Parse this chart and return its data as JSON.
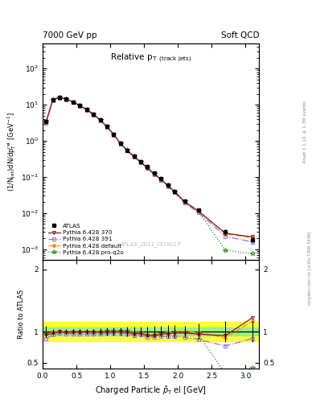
{
  "title_left": "7000 GeV pp",
  "title_right": "Soft QCD",
  "plot_title": "Relative p$_\\mathrm{T}$ $_{\\mathrm{(track\\ jets)}}$",
  "xlabel": "Charged Particle $\\tilde{p}_\\mathrm{T}$ el [GeV]",
  "ylabel_main": "(1/N$_\\mathrm{jet}$)dN/dp$_\\mathrm{T}^\\mathrm{rel}$ [GeV$^{-1}$]",
  "ylabel_ratio": "Ratio to ATLAS",
  "right_label": "Rivet 3.1.10, ≥ 1.7M events",
  "right_label2": "mcplots.cern.ch [arXiv:1306.3436]",
  "watermark": "ATLAS_2011_I919017",
  "x_atlas": [
    0.05,
    0.15,
    0.25,
    0.35,
    0.45,
    0.55,
    0.65,
    0.75,
    0.85,
    0.95,
    1.05,
    1.15,
    1.25,
    1.35,
    1.45,
    1.55,
    1.65,
    1.75,
    1.85,
    1.95,
    2.1,
    2.3,
    2.7,
    3.1
  ],
  "y_atlas": [
    3.5,
    14.0,
    16.0,
    14.5,
    12.0,
    9.5,
    7.5,
    5.5,
    3.8,
    2.5,
    1.5,
    0.85,
    0.55,
    0.38,
    0.27,
    0.19,
    0.13,
    0.09,
    0.06,
    0.04,
    0.021,
    0.012,
    0.003,
    0.0018
  ],
  "y_atlas_err": [
    0.3,
    0.6,
    0.5,
    0.5,
    0.4,
    0.35,
    0.3,
    0.25,
    0.2,
    0.15,
    0.1,
    0.06,
    0.04,
    0.03,
    0.02,
    0.015,
    0.012,
    0.008,
    0.006,
    0.004,
    0.002,
    0.0015,
    0.0005,
    0.0003
  ],
  "x_mc": [
    0.05,
    0.15,
    0.25,
    0.35,
    0.45,
    0.55,
    0.65,
    0.75,
    0.85,
    0.95,
    1.05,
    1.15,
    1.25,
    1.35,
    1.45,
    1.55,
    1.65,
    1.75,
    1.85,
    1.95,
    2.1,
    2.3,
    2.7,
    3.1
  ],
  "y_py370": [
    3.3,
    13.6,
    15.9,
    14.3,
    11.9,
    9.4,
    7.45,
    5.45,
    3.75,
    2.48,
    1.49,
    0.845,
    0.545,
    0.365,
    0.262,
    0.177,
    0.121,
    0.086,
    0.058,
    0.039,
    0.0205,
    0.0115,
    0.0028,
    0.0022
  ],
  "y_py391": [
    3.1,
    13.2,
    15.5,
    14.0,
    11.6,
    9.1,
    7.2,
    5.3,
    3.65,
    2.42,
    1.46,
    0.83,
    0.53,
    0.355,
    0.255,
    0.172,
    0.118,
    0.083,
    0.055,
    0.037,
    0.019,
    0.0105,
    0.0023,
    0.0016
  ],
  "y_pydef": [
    3.35,
    13.8,
    16.1,
    14.4,
    12.0,
    9.5,
    7.5,
    5.5,
    3.78,
    2.5,
    1.5,
    0.85,
    0.55,
    0.37,
    0.265,
    0.179,
    0.123,
    0.087,
    0.059,
    0.04,
    0.021,
    0.0118,
    0.0027,
    0.0021
  ],
  "y_pyproq2o": [
    3.4,
    13.8,
    16.1,
    14.4,
    12.0,
    9.5,
    7.5,
    5.5,
    3.8,
    2.52,
    1.52,
    0.86,
    0.56,
    0.375,
    0.268,
    0.18,
    0.123,
    0.088,
    0.059,
    0.04,
    0.021,
    0.0115,
    0.00095,
    0.00075
  ],
  "color_atlas": "#000000",
  "color_py370": "#8b1a1a",
  "color_py391": "#9370db",
  "color_pydef": "#ff8c00",
  "color_pyproq2o": "#228b22",
  "band_yellow_low": 0.85,
  "band_yellow_high": 1.15,
  "band_green_low": 0.93,
  "band_green_high": 1.07,
  "band_xstart": 2.5,
  "xlim": [
    0.0,
    3.2
  ],
  "ylim_main": [
    0.0005,
    500
  ],
  "ylim_ratio": [
    0.4,
    2.15
  ]
}
